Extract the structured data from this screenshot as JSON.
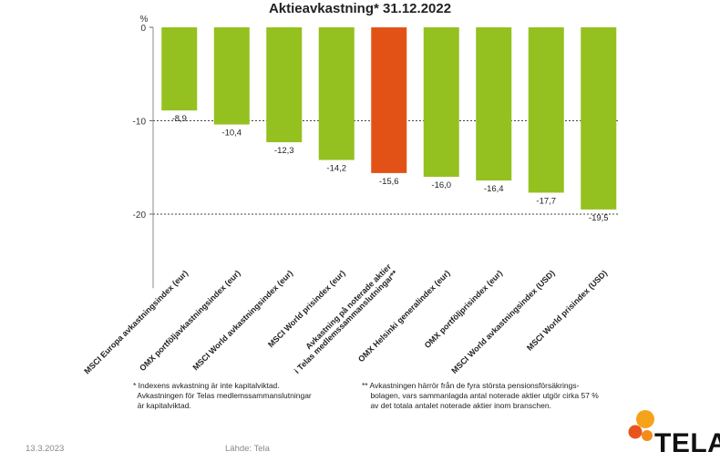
{
  "chart_data": {
    "type": "bar",
    "title": "Aktieavkastning* 31.12.2022",
    "ylabel": "%",
    "ylim": [
      -25,
      0
    ],
    "yticks": [
      0,
      -10,
      -20
    ],
    "grid": true,
    "categories": [
      "MSCI Europa avkastningsindex (eur)",
      "OMX portföljavkastningsindex (eur)",
      "MSCI World avkastningsindex (eur)",
      "MSCI World prisindex (eur)",
      "Avkastning på noterade aktier i Telas medlemssammanslutningar**",
      "OMX Helsinki generalindex (eur)",
      "OMX portföljprisindex (eur)",
      "MSCI World avkastningsindex (USD)",
      "MSCI World prisindex (USD)"
    ],
    "values": [
      -8.9,
      -10.4,
      -12.3,
      -14.2,
      -15.6,
      -16.0,
      -16.4,
      -17.7,
      -19.5
    ],
    "data_labels": [
      "-8,9",
      "-10,4",
      "-12,3",
      "-14,2",
      "-15,6",
      "-16,0",
      "-16,4",
      "-17,7",
      "-19,5"
    ],
    "highlight_index": 4,
    "colors": {
      "bar": "#94c11f",
      "highlight": "#e25216"
    }
  },
  "footnotes": {
    "left": [
      "* Indexens avkastning är inte kapitalviktad.",
      "  Avkastningen för Telas medlemssammanslutningar",
      "  är kapitalviktad."
    ],
    "right": [
      "** Avkastningen härrör från de fyra största pensionsförsäkrings-",
      "    bolagen, vars sammanlagda antal noterade aktier utgör cirka 57 %",
      "    av det totala antalet noterade aktier inom branschen."
    ]
  },
  "footer": {
    "date": "13.3.2023",
    "source": "Lähde: Tela"
  },
  "logo": {
    "text": "TELA",
    "dot_colors": [
      "#f7a21b",
      "#e8551c",
      "#f28c1a"
    ]
  }
}
